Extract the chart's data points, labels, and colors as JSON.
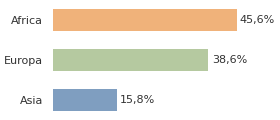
{
  "categories": [
    "Africa",
    "Europa",
    "Asia"
  ],
  "values": [
    45.6,
    38.6,
    15.8
  ],
  "labels": [
    "45,6%",
    "38,6%",
    "15,8%"
  ],
  "bar_colors": [
    "#f0b27a",
    "#b5c9a0",
    "#7f9ec0"
  ],
  "background_color": "#ffffff",
  "xlim": [
    0,
    55
  ],
  "bar_height": 0.55,
  "label_fontsize": 8,
  "tick_fontsize": 8
}
